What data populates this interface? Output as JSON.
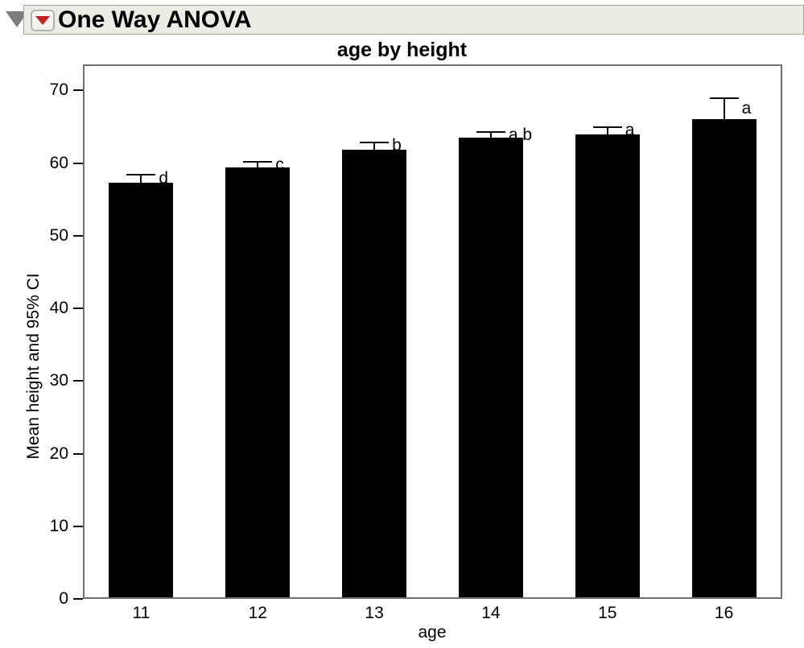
{
  "header": {
    "title": "One Way ANOVA",
    "disclosure_icon": "triangle-down",
    "menu_icon": "red-triangle-down",
    "background_color": "#ecebe4",
    "accent_red": "#c42121"
  },
  "chart_data": {
    "type": "bar",
    "title": "age by height",
    "xlabel": "age",
    "ylabel": "Mean height and 95% CI",
    "categories": [
      "11",
      "12",
      "13",
      "14",
      "15",
      "16"
    ],
    "values": [
      57.3,
      59.4,
      61.9,
      63.5,
      64.0,
      66.1
    ],
    "ci_upper": [
      58.4,
      60.2,
      62.9,
      64.3,
      65.0,
      68.9
    ],
    "group_letters": [
      "d",
      "c",
      "b",
      "a,b",
      "a",
      "a"
    ],
    "ylim": [
      0,
      73.6
    ],
    "yticks": [
      0,
      10,
      20,
      30,
      40,
      50,
      60,
      70
    ],
    "bar_color": "#000000",
    "grid": false,
    "legend": "none"
  }
}
